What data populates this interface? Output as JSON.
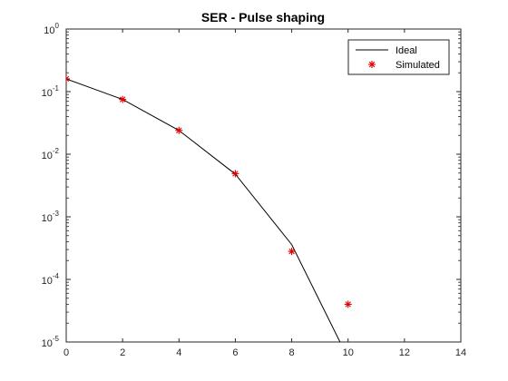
{
  "chart_data": {
    "type": "line",
    "title": "SER - Pulse shaping",
    "xlabel": "",
    "ylabel": "",
    "xlim": [
      0,
      14
    ],
    "ylim": [
      1e-05,
      1
    ],
    "yscale": "log",
    "grid": false,
    "legend_position": "top-right",
    "x_ticks": [
      0,
      2,
      4,
      6,
      8,
      10,
      12,
      14
    ],
    "x_tick_labels": [
      "0",
      "2",
      "4",
      "6",
      "8",
      "10",
      "12",
      "14"
    ],
    "y_ticks": [
      {
        "value": 1,
        "base": "10",
        "exp": "0"
      },
      {
        "value": 0.1,
        "base": "10",
        "exp": "-1"
      },
      {
        "value": 0.01,
        "base": "10",
        "exp": "-2"
      },
      {
        "value": 0.001,
        "base": "10",
        "exp": "-3"
      },
      {
        "value": 0.0001,
        "base": "10",
        "exp": "-4"
      },
      {
        "value": 1e-05,
        "base": "10",
        "exp": "-5"
      }
    ],
    "series": [
      {
        "name": "Ideal",
        "style": "line",
        "color": "#000000",
        "x": [
          0,
          2,
          4,
          6,
          8,
          10
        ],
        "y": [
          0.16,
          0.075,
          0.024,
          0.0048,
          0.00036,
          5.5e-06
        ]
      },
      {
        "name": "Simulated",
        "style": "marker-asterisk",
        "color": "#e00000",
        "x": [
          0,
          2,
          4,
          6,
          8,
          10
        ],
        "y": [
          0.16,
          0.075,
          0.024,
          0.0049,
          0.00028,
          4e-05
        ]
      }
    ]
  }
}
